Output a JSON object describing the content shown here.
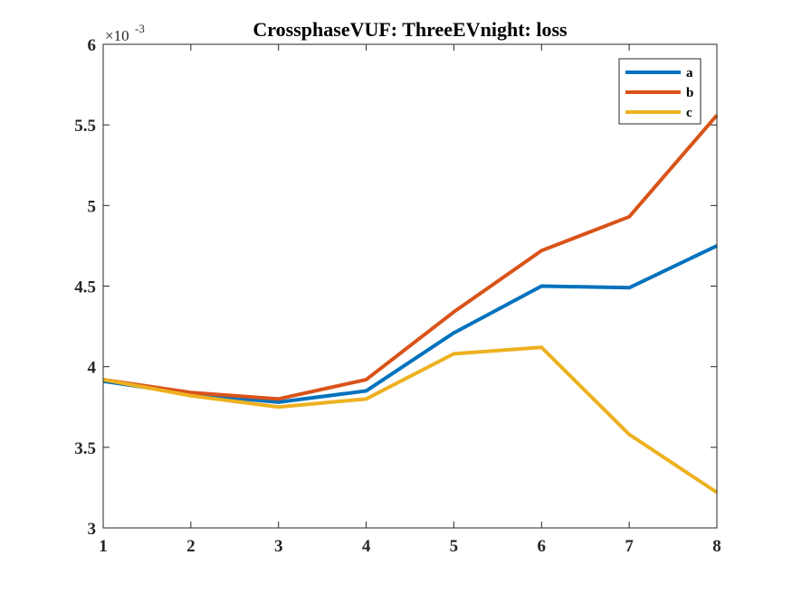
{
  "chart_data": {
    "type": "line",
    "title": "CrossphaseVUF: ThreeEVnight: loss",
    "xlabel": "",
    "ylabel": "",
    "x": [
      1,
      2,
      3,
      4,
      5,
      6,
      7,
      8
    ],
    "xlim": [
      1,
      8
    ],
    "ylim": [
      3,
      6
    ],
    "y_scale_factor_label": "×10",
    "y_scale_exponent": "-3",
    "xticks": [
      "1",
      "2",
      "3",
      "4",
      "5",
      "6",
      "7",
      "8"
    ],
    "yticks": [
      "3",
      "3.5",
      "4",
      "4.5",
      "5",
      "5.5",
      "6"
    ],
    "grid": false,
    "legend_position": "top-right",
    "series": [
      {
        "name": "a",
        "color": "#0072BD",
        "values": [
          3.91,
          3.83,
          3.78,
          3.85,
          4.21,
          4.5,
          4.49,
          4.75
        ]
      },
      {
        "name": "b",
        "color": "#D95319",
        "values": [
          3.92,
          3.84,
          3.8,
          3.92,
          4.34,
          4.72,
          4.93,
          5.56
        ]
      },
      {
        "name": "c",
        "color": "#EDB120",
        "values": [
          3.92,
          3.82,
          3.75,
          3.8,
          4.08,
          4.12,
          3.58,
          3.22
        ]
      }
    ]
  }
}
